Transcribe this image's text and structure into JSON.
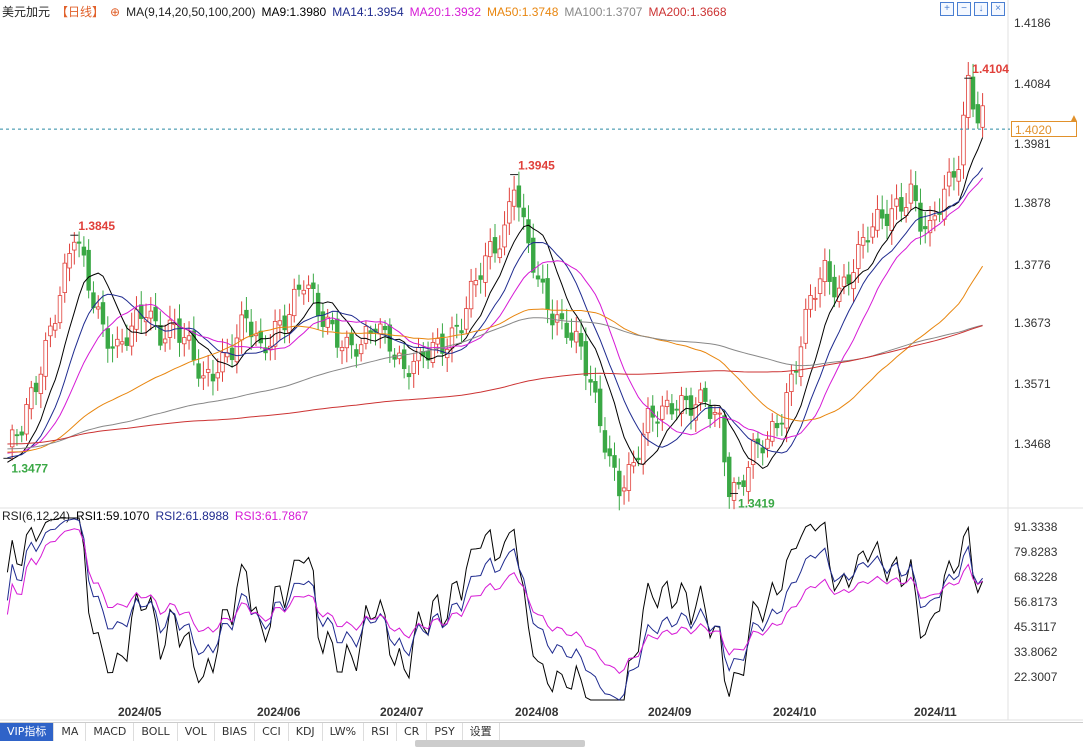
{
  "header": {
    "symbol": "美元加元",
    "period": "【日线】",
    "settings_icon": "gear-icon",
    "ma_params": "MA(9,14,20,50,100,200)",
    "ma9": "MA9:1.3980",
    "ma14": "MA14:1.3954",
    "ma20": "MA20:1.3932",
    "ma50": "MA50:1.3748",
    "ma100": "MA100:1.3707",
    "ma200": "MA200:1.3668"
  },
  "rsi_header": {
    "params": "RSI(6,12,24)",
    "rsi1": "RSI1:59.1070",
    "rsi2": "RSI2:61.8988",
    "rsi3": "RSI3:61.7867"
  },
  "toolbar_icons": [
    "expand-icon",
    "collapse-icon",
    "download-icon",
    "close-icon"
  ],
  "price_axis": [
    "1.4186",
    "1.4084",
    "1.3981",
    "1.3878",
    "1.3776",
    "1.3673",
    "1.3571",
    "1.3468"
  ],
  "rsi_axis": [
    "91.3338",
    "79.8283",
    "68.3228",
    "56.8173",
    "45.3117",
    "33.8062",
    "22.3007"
  ],
  "current_price": "1.4020",
  "annotations": {
    "high_1": "1.3845",
    "high_2": "1.3945",
    "high_3": "1.4104",
    "low_1": "1.3477",
    "low_2": "1.3419"
  },
  "x_axis": [
    "2024/05",
    "2024/06",
    "2024/07",
    "2024/08",
    "2024/09",
    "2024/10",
    "2024/11"
  ],
  "tabs": [
    "VIP指标",
    "MA",
    "MACD",
    "BOLL",
    "VOL",
    "BIAS",
    "CCI",
    "KDJ",
    "LW%",
    "RSI",
    "CR",
    "PSY",
    "设置"
  ],
  "colors": {
    "up": "#e0403a",
    "down": "#3aa845",
    "ma9": "#000000",
    "ma14": "#1f2b8f",
    "ma20": "#d61ad6",
    "ma50": "#e8860f",
    "ma100": "#888888",
    "ma200": "#cc3333",
    "rsi1": "#000000",
    "rsi2": "#1f2b8f",
    "rsi3": "#d61ad6"
  },
  "chart_data": {
    "type": "candlestick",
    "title": "美元加元",
    "period": "日线",
    "x_months": [
      "2024/05",
      "2024/06",
      "2024/07",
      "2024/08",
      "2024/09",
      "2024/10",
      "2024/11"
    ],
    "y_range": [
      1.34,
      1.42
    ],
    "close_path": [
      [
        0,
        1.349
      ],
      [
        3,
        1.352
      ],
      [
        6,
        1.36
      ],
      [
        9,
        1.37
      ],
      [
        12,
        1.378
      ],
      [
        14,
        1.384
      ],
      [
        17,
        1.376
      ],
      [
        20,
        1.37
      ],
      [
        23,
        1.366
      ],
      [
        26,
        1.368
      ],
      [
        29,
        1.372
      ],
      [
        32,
        1.369
      ],
      [
        35,
        1.37
      ],
      [
        38,
        1.365
      ],
      [
        41,
        1.36
      ],
      [
        44,
        1.364
      ],
      [
        47,
        1.366
      ],
      [
        50,
        1.37
      ],
      [
        53,
        1.365
      ],
      [
        56,
        1.37
      ],
      [
        59,
        1.372
      ],
      [
        62,
        1.376
      ],
      [
        65,
        1.372
      ],
      [
        68,
        1.37
      ],
      [
        71,
        1.366
      ],
      [
        74,
        1.365
      ],
      [
        77,
        1.37
      ],
      [
        80,
        1.368
      ],
      [
        83,
        1.362
      ],
      [
        86,
        1.363
      ],
      [
        89,
        1.366
      ],
      [
        92,
        1.368
      ],
      [
        95,
        1.37
      ],
      [
        98,
        1.376
      ],
      [
        101,
        1.382
      ],
      [
        104,
        1.386
      ],
      [
        106,
        1.394
      ],
      [
        108,
        1.385
      ],
      [
        111,
        1.376
      ],
      [
        114,
        1.372
      ],
      [
        117,
        1.37
      ],
      [
        120,
        1.365
      ],
      [
        123,
        1.356
      ],
      [
        126,
        1.348
      ],
      [
        128,
        1.344
      ],
      [
        131,
        1.346
      ],
      [
        134,
        1.353
      ],
      [
        137,
        1.356
      ],
      [
        140,
        1.358
      ],
      [
        143,
        1.356
      ],
      [
        146,
        1.356
      ],
      [
        149,
        1.354
      ],
      [
        151,
        1.344
      ],
      [
        153,
        1.343
      ],
      [
        156,
        1.348
      ],
      [
        159,
        1.35
      ],
      [
        162,
        1.356
      ],
      [
        165,
        1.364
      ],
      [
        168,
        1.373
      ],
      [
        171,
        1.378
      ],
      [
        174,
        1.376
      ],
      [
        177,
        1.38
      ],
      [
        180,
        1.384
      ],
      [
        183,
        1.387
      ],
      [
        186,
        1.39
      ],
      [
        189,
        1.392
      ],
      [
        191,
        1.386
      ],
      [
        193,
        1.384
      ],
      [
        196,
        1.392
      ],
      [
        199,
        1.398
      ],
      [
        201,
        1.41
      ],
      [
        203,
        1.403
      ]
    ],
    "moving_averages": {
      "MA9": 1.398,
      "MA14": 1.3954,
      "MA20": 1.3932,
      "MA50": 1.3748,
      "MA100": 1.3707,
      "MA200": 1.3668
    },
    "highs_lows": {
      "1.3845": "high",
      "1.3945": "high",
      "1.4104": "high",
      "1.3477": "low",
      "1.3419": "low"
    },
    "rsi": {
      "params": "RSI(6,12,24)",
      "RSI1": 59.107,
      "RSI2": 61.8988,
      "RSI3": 61.7867,
      "y_range": [
        15,
        95
      ]
    }
  }
}
